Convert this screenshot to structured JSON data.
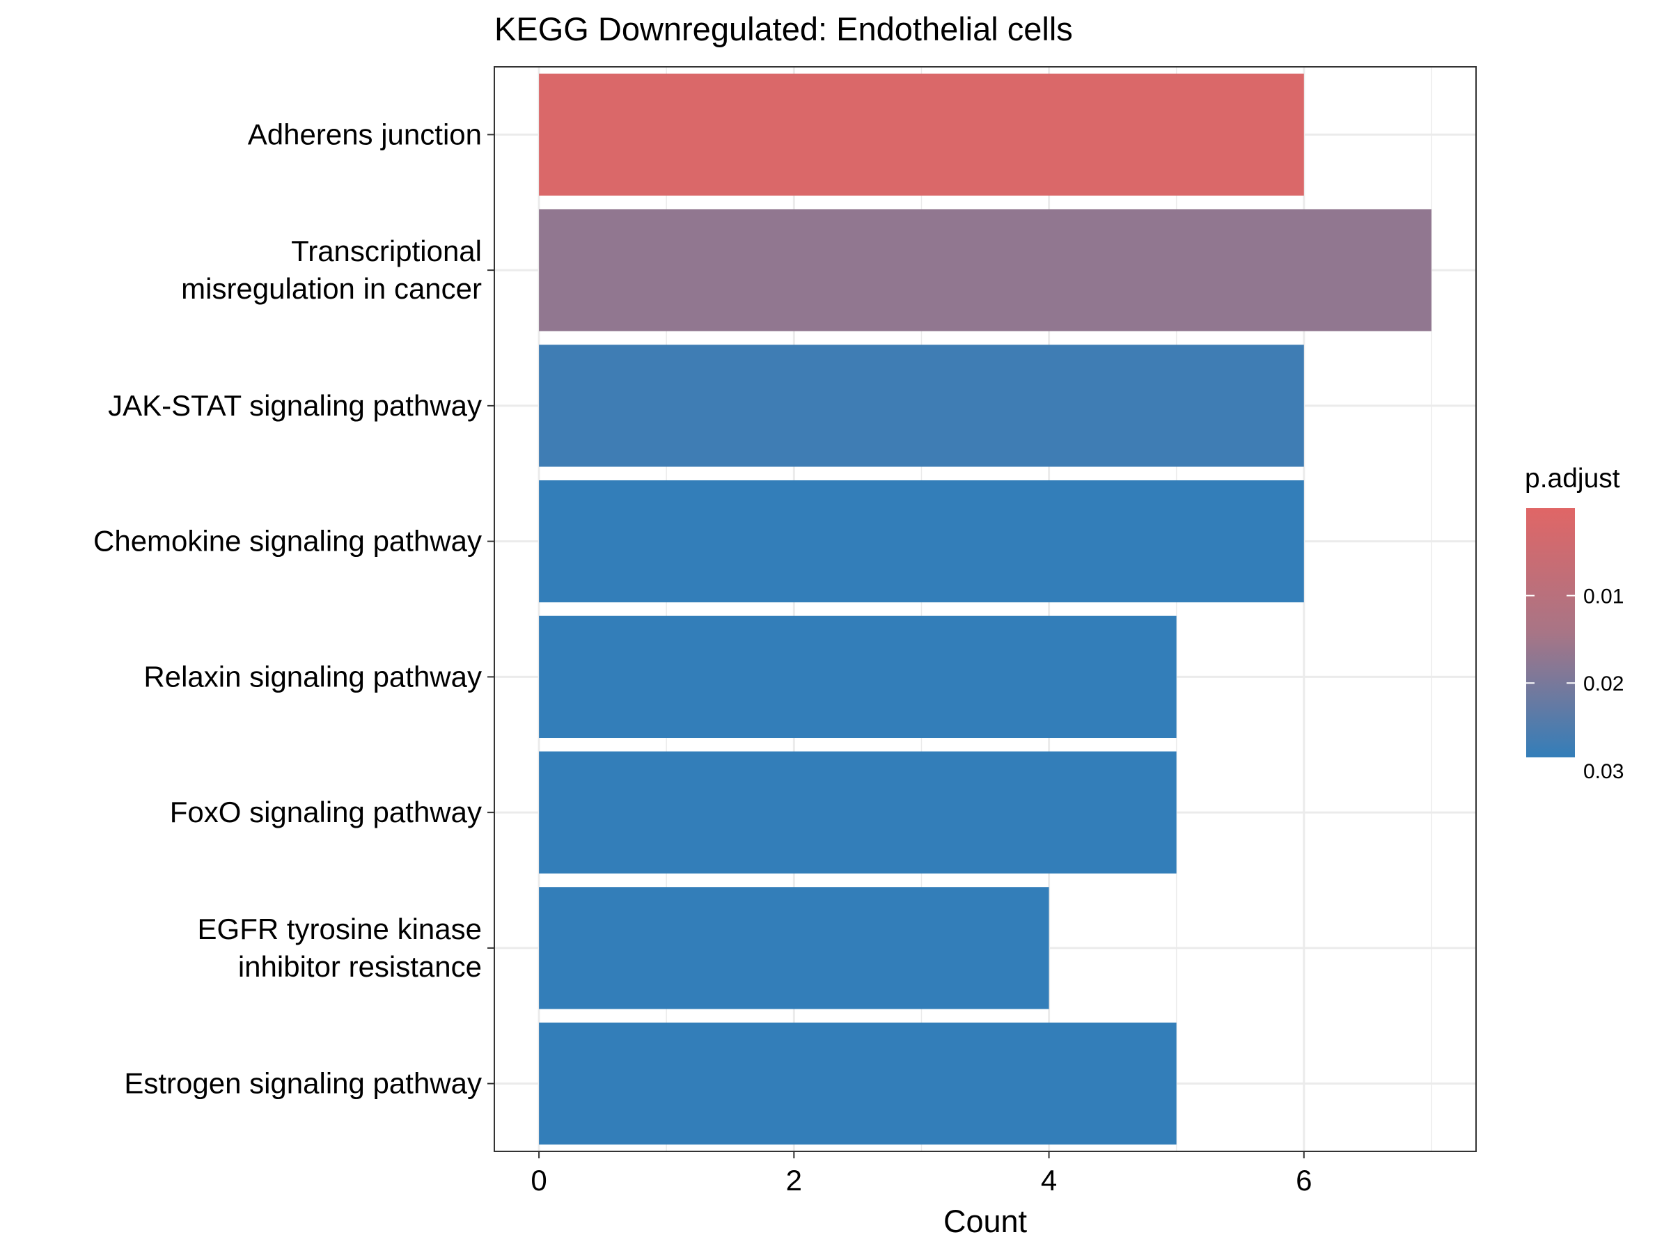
{
  "chart_data": {
    "type": "bar",
    "orientation": "horizontal",
    "title": "KEGG Downregulated: Endothelial cells",
    "xlabel": "Count",
    "ylabel": "",
    "xlim": [
      -0.35,
      7.35
    ],
    "xticks": [
      "0",
      "2",
      "4",
      "6"
    ],
    "grid": true,
    "categories": [
      [
        "Adherens junction"
      ],
      [
        "Transcriptional",
        "misregulation in cancer"
      ],
      [
        "JAK-STAT signaling pathway"
      ],
      [
        "Chemokine signaling pathway"
      ],
      [
        "Relaxin signaling pathway"
      ],
      [
        "FoxO signaling pathway"
      ],
      [
        "EGFR tyrosine kinase",
        "inhibitor resistance"
      ],
      [
        "Estrogen signaling pathway"
      ]
    ],
    "values": [
      6,
      7,
      6,
      6,
      5,
      5,
      4,
      5
    ],
    "p_adjust": [
      0.0015,
      0.017,
      0.027,
      0.032,
      0.032,
      0.032,
      0.032,
      0.032
    ],
    "legend": {
      "title": "p.adjust",
      "position": "right",
      "tick_values": [
        0.01,
        0.02,
        0.03
      ],
      "tick_labels": [
        "0.01",
        "0.02",
        "0.03"
      ],
      "range": [
        0.0,
        0.0285
      ],
      "color_low_p": "#E06666",
      "color_mid_p": "#A87586",
      "color_high_p": "#337EB9"
    }
  }
}
